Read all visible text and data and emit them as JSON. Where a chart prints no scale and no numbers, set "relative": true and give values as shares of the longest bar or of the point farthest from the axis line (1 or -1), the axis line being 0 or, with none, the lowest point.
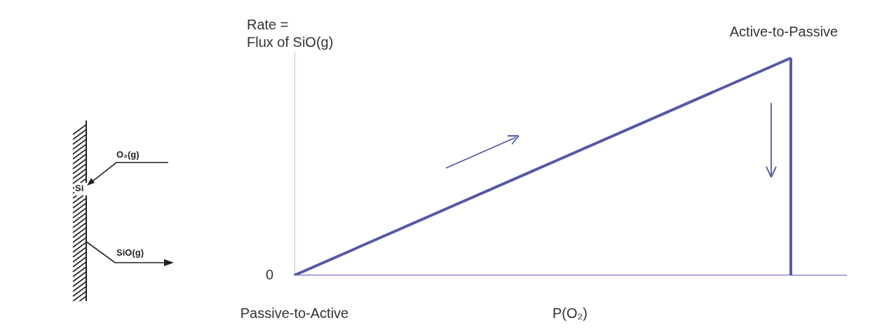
{
  "chart_data": {
    "type": "line",
    "relative": true,
    "ylabel": "Rate =\nFlux of SiO(g)",
    "xlabel": "P(O₂)",
    "categories": [
      null,
      null
    ],
    "values": [
      0,
      1
    ],
    "color": "#5558a6",
    "marker": "none",
    "annotations": [
      "0",
      "Passive-to-Active",
      "Active-to-Passive",
      "O₂(g)",
      "Si",
      "SiO(g)"
    ]
  }
}
